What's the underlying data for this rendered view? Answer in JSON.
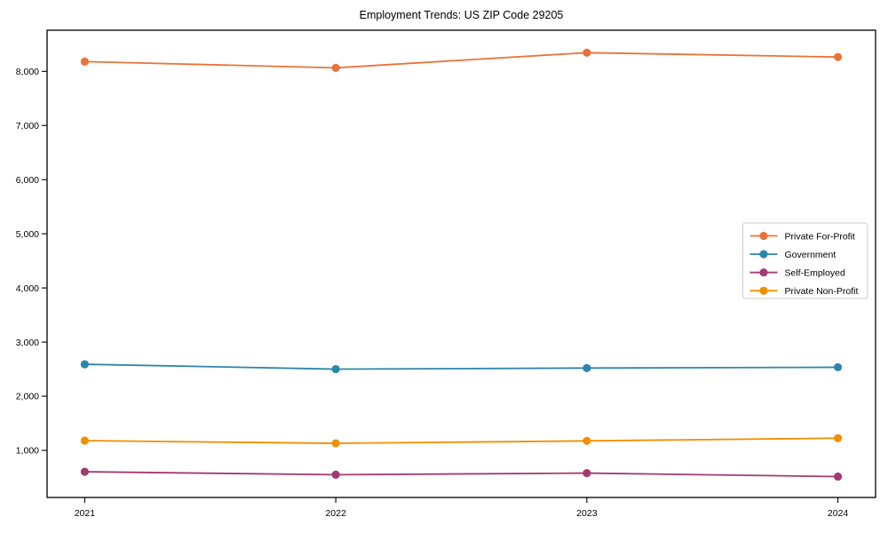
{
  "chart_data": {
    "type": "line",
    "title": "Employment Trends: US ZIP Code 29205",
    "xlabel": "",
    "ylabel": "",
    "x": [
      2021,
      2022,
      2023,
      2024
    ],
    "xlim": [
      2020.85,
      2024.15
    ],
    "ylim": [
      130,
      8760
    ],
    "yticks": [
      1000,
      2000,
      3000,
      4000,
      5000,
      6000,
      7000,
      8000
    ],
    "grid": false,
    "legend_position": "center-right",
    "series": [
      {
        "name": "Private For-Profit",
        "color": "#E8743B",
        "values": [
          8180,
          8065,
          8345,
          8265
        ]
      },
      {
        "name": "Government",
        "color": "#2E86AB",
        "values": [
          2590,
          2500,
          2520,
          2535
        ]
      },
      {
        "name": "Self-Employed",
        "color": "#A23B72",
        "values": [
          605,
          550,
          580,
          515
        ]
      },
      {
        "name": "Private Non-Profit",
        "color": "#F18F01",
        "values": [
          1180,
          1130,
          1175,
          1225
        ]
      }
    ]
  }
}
